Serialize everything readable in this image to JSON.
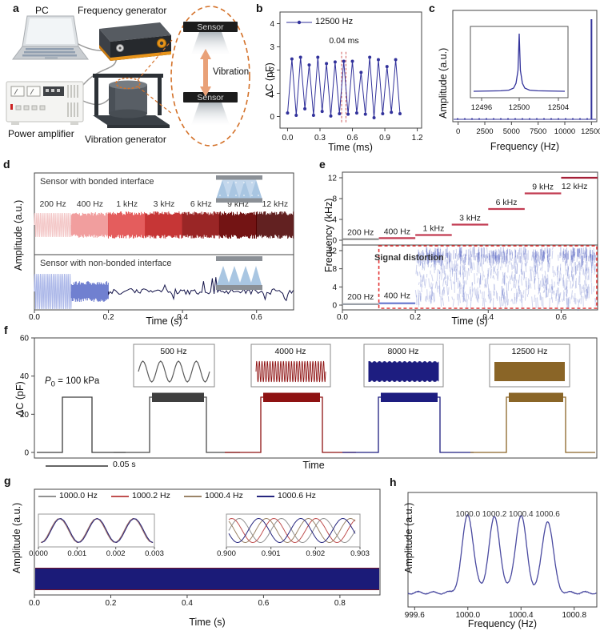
{
  "figure": {
    "panel_labels": {
      "a": "a",
      "b": "b",
      "c": "c",
      "d": "d",
      "e": "e",
      "f": "f",
      "g": "g",
      "h": "h"
    }
  },
  "panel_a": {
    "pc_label": "PC",
    "frequency_generator_label": "Frequency generator",
    "power_amplifier_label": "Power amplifier",
    "vibration_generator_label": "Vibration generator",
    "sensor_label_top": "Sensor",
    "sensor_label_bottom": "Sensor",
    "vibration_label": "Vibration",
    "accent_color": "#d4722a"
  },
  "chart_data": [
    {
      "panel": "b",
      "type": "line",
      "xlabel": "Time (ms)",
      "ylabel": "ΔC (pF)",
      "xlim": [
        -0.07,
        1.24
      ],
      "ylim": [
        -0.5,
        4.5
      ],
      "xticks": [
        "0.0",
        "0.3",
        "0.6",
        "0.9",
        "1.2"
      ],
      "yticks": [
        "0",
        "1",
        "2",
        "3",
        "4"
      ],
      "legend": "12500 Hz",
      "line_color": "#32329b",
      "annotation": {
        "text": "0.04 ms",
        "x1": 0.5,
        "x2": 0.54,
        "color": "#d06060"
      },
      "points": [
        [
          0.0,
          0.15
        ],
        [
          0.04,
          2.48
        ],
        [
          0.08,
          0.05
        ],
        [
          0.12,
          2.55
        ],
        [
          0.16,
          0.33
        ],
        [
          0.2,
          2.22
        ],
        [
          0.24,
          0.05
        ],
        [
          0.28,
          2.55
        ],
        [
          0.32,
          0.22
        ],
        [
          0.36,
          2.28
        ],
        [
          0.4,
          0.02
        ],
        [
          0.44,
          2.35
        ],
        [
          0.48,
          0.12
        ],
        [
          0.52,
          2.38
        ],
        [
          0.56,
          0.1
        ],
        [
          0.6,
          2.38
        ],
        [
          0.64,
          0.15
        ],
        [
          0.68,
          1.9
        ],
        [
          0.72,
          0.1
        ],
        [
          0.76,
          2.55
        ],
        [
          0.8,
          -0.05
        ],
        [
          0.84,
          2.45
        ],
        [
          0.88,
          0.12
        ],
        [
          0.92,
          2.15
        ],
        [
          0.96,
          0.18
        ],
        [
          1.0,
          2.45
        ],
        [
          1.04,
          0.12
        ]
      ]
    },
    {
      "panel": "c",
      "type": "spectrum",
      "xlabel": "Frequency (Hz)",
      "ylabel": "Amplitude (a.u.)",
      "xlim": [
        -500,
        13000
      ],
      "xticks": [
        "0",
        "2500",
        "5000",
        "7500",
        "10000",
        "12500"
      ],
      "peak_frequency": 12500,
      "line_color": "#32329b",
      "inset": {
        "xticks": [
          "12496",
          "12500",
          "12504"
        ],
        "peak_frequency": 12500
      }
    },
    {
      "panel": "d",
      "type": "waveform",
      "xlabel": "Time (s)",
      "ylabel": "Amplitude (a.u.)",
      "tlim": [
        0,
        0.7
      ],
      "xticks": [
        "0.0",
        "0.2",
        "0.4",
        "0.6"
      ],
      "top": {
        "title": "Sensor with bonded interface",
        "segments": [
          {
            "label": "200 Hz",
            "color": "#f3c6c6"
          },
          {
            "label": "400 Hz",
            "color": "#ef9191"
          },
          {
            "label": "1 kHz",
            "color": "#e25252"
          },
          {
            "label": "3 kHz",
            "color": "#bf1f1f"
          },
          {
            "label": "6 kHz",
            "color": "#8e0d0d"
          },
          {
            "label": "9 kHz",
            "color": "#6a0505"
          },
          {
            "label": "12 kHz",
            "color": "#4c0202"
          }
        ]
      },
      "bottom": {
        "title": "Sensor with non-bonded interface",
        "segments": [
          {
            "type": "sine",
            "color": "#aab6e8"
          },
          {
            "type": "noise",
            "color": "#5d6ec9"
          },
          {
            "type": "spiky",
            "color": "#14144a"
          }
        ]
      }
    },
    {
      "panel": "e",
      "type": "steps",
      "xlabel": "Time (s)",
      "ylabel": "Frequency (kHz)",
      "tlim": [
        0,
        0.7
      ],
      "xticks": [
        "0.0",
        "0.2",
        "0.4",
        "0.6"
      ],
      "yticks": [
        "0",
        "4",
        "8",
        "12"
      ],
      "steps": [
        {
          "label": "200 Hz",
          "khz": 0.2,
          "t0": 0.0,
          "t1": 0.1,
          "color": "#8c8c8c"
        },
        {
          "label": "400 Hz",
          "khz": 0.4,
          "t0": 0.1,
          "t1": 0.2,
          "color": "#c23b52"
        },
        {
          "label": "1 kHz",
          "khz": 1,
          "t0": 0.2,
          "t1": 0.3,
          "color": "#c23b52"
        },
        {
          "label": "3 kHz",
          "khz": 3,
          "t0": 0.3,
          "t1": 0.4,
          "color": "#c23b52"
        },
        {
          "label": "6 kHz",
          "khz": 6,
          "t0": 0.4,
          "t1": 0.5,
          "color": "#c23b52"
        },
        {
          "label": "9 kHz",
          "khz": 9,
          "t0": 0.5,
          "t1": 0.6,
          "color": "#c23b52"
        },
        {
          "label": "12 kHz",
          "khz": 12,
          "t0": 0.6,
          "t1": 0.7,
          "color": "#a52038"
        }
      ],
      "bottom": {
        "steps": [
          {
            "label": "200 Hz",
            "khz": 0.2,
            "t0": 0.0,
            "t1": 0.1,
            "color": "#9aa0a8"
          },
          {
            "label": "400 Hz",
            "khz": 0.4,
            "t0": 0.1,
            "t1": 0.2,
            "color": "#6b7bd0"
          }
        ],
        "distortion_label": "Signal distortion",
        "noise_t0": 0.2,
        "box": {
          "t0": 0.1,
          "t1": 0.7,
          "color": "#e23333"
        }
      }
    },
    {
      "panel": "f",
      "type": "pulses",
      "xlabel": "Time",
      "ylabel": "ΔC (pF)",
      "ylim": [
        0,
        60
      ],
      "yticks": [
        "0",
        "20",
        "40",
        "60"
      ],
      "pulse_height_pf": 29,
      "pressure_label": {
        "sym": "P",
        "sub": "0",
        "rest": " = 100 kPa"
      },
      "scalebar_label": "0.05 s",
      "pulses": [
        {
          "label": "",
          "color": "#3c3c3c",
          "band": false,
          "wave": "none"
        },
        {
          "label": "500 Hz",
          "color": "#4a4a4a",
          "band": true,
          "band_color": "#3f3f3f",
          "wave": "sine"
        },
        {
          "label": "4000 Hz",
          "color": "#8e1212",
          "band": true,
          "band_color": "#8e1212",
          "wave": "dense"
        },
        {
          "label": "8000 Hz",
          "color": "#1d1d80",
          "band": true,
          "band_color": "#1d1d80",
          "wave": "packed"
        },
        {
          "label": "12500 Hz",
          "color": "#8a6527",
          "band": true,
          "band_color": "#8a6527",
          "wave": "solid"
        }
      ]
    },
    {
      "panel": "g",
      "type": "multisine",
      "xlabel": "Time (s)",
      "ylabel": "Amplitude (a.u.)",
      "xlim": [
        0,
        0.905
      ],
      "xticks": [
        "0.0",
        "0.2",
        "0.4",
        "0.6",
        "0.8"
      ],
      "band_color": "#1b1b78",
      "band_edge_color": "#70122a",
      "series": [
        {
          "label": "1000.0 Hz",
          "frequency_hz": 1000.0,
          "color": "#919191"
        },
        {
          "label": "1000.2 Hz",
          "frequency_hz": 1000.2,
          "color": "#c05050"
        },
        {
          "label": "1000.4 Hz",
          "frequency_hz": 1000.4,
          "color": "#9b8468"
        },
        {
          "label": "1000.6 Hz",
          "frequency_hz": 1000.6,
          "color": "#26267f"
        }
      ],
      "inset_left": {
        "xticks": [
          "0.000",
          "0.001",
          "0.002",
          "0.003"
        ],
        "t0": 0.0,
        "t1": 0.003
      },
      "inset_right": {
        "xticks": [
          "0.900",
          "0.901",
          "0.902",
          "0.903"
        ],
        "t0": 0.9,
        "t1": 0.903
      }
    },
    {
      "panel": "h",
      "type": "spectrum-peaks",
      "xlabel": "Frequency (Hz)",
      "ylabel": "Amplitude (a.u.)",
      "xlim": [
        999.55,
        1000.97
      ],
      "xticks": [
        "999.6",
        "1000.0",
        "1000.4",
        "1000.8"
      ],
      "line_color": "#4a4aa0",
      "peaks": [
        {
          "label": "1000.0",
          "hz": 1000.0,
          "height": 0.78
        },
        {
          "label": "1000.2",
          "hz": 1000.2,
          "height": 0.75
        },
        {
          "label": "1000.4",
          "hz": 1000.4,
          "height": 0.77
        },
        {
          "label": "1000.6",
          "hz": 1000.6,
          "height": 0.72
        }
      ]
    }
  ]
}
